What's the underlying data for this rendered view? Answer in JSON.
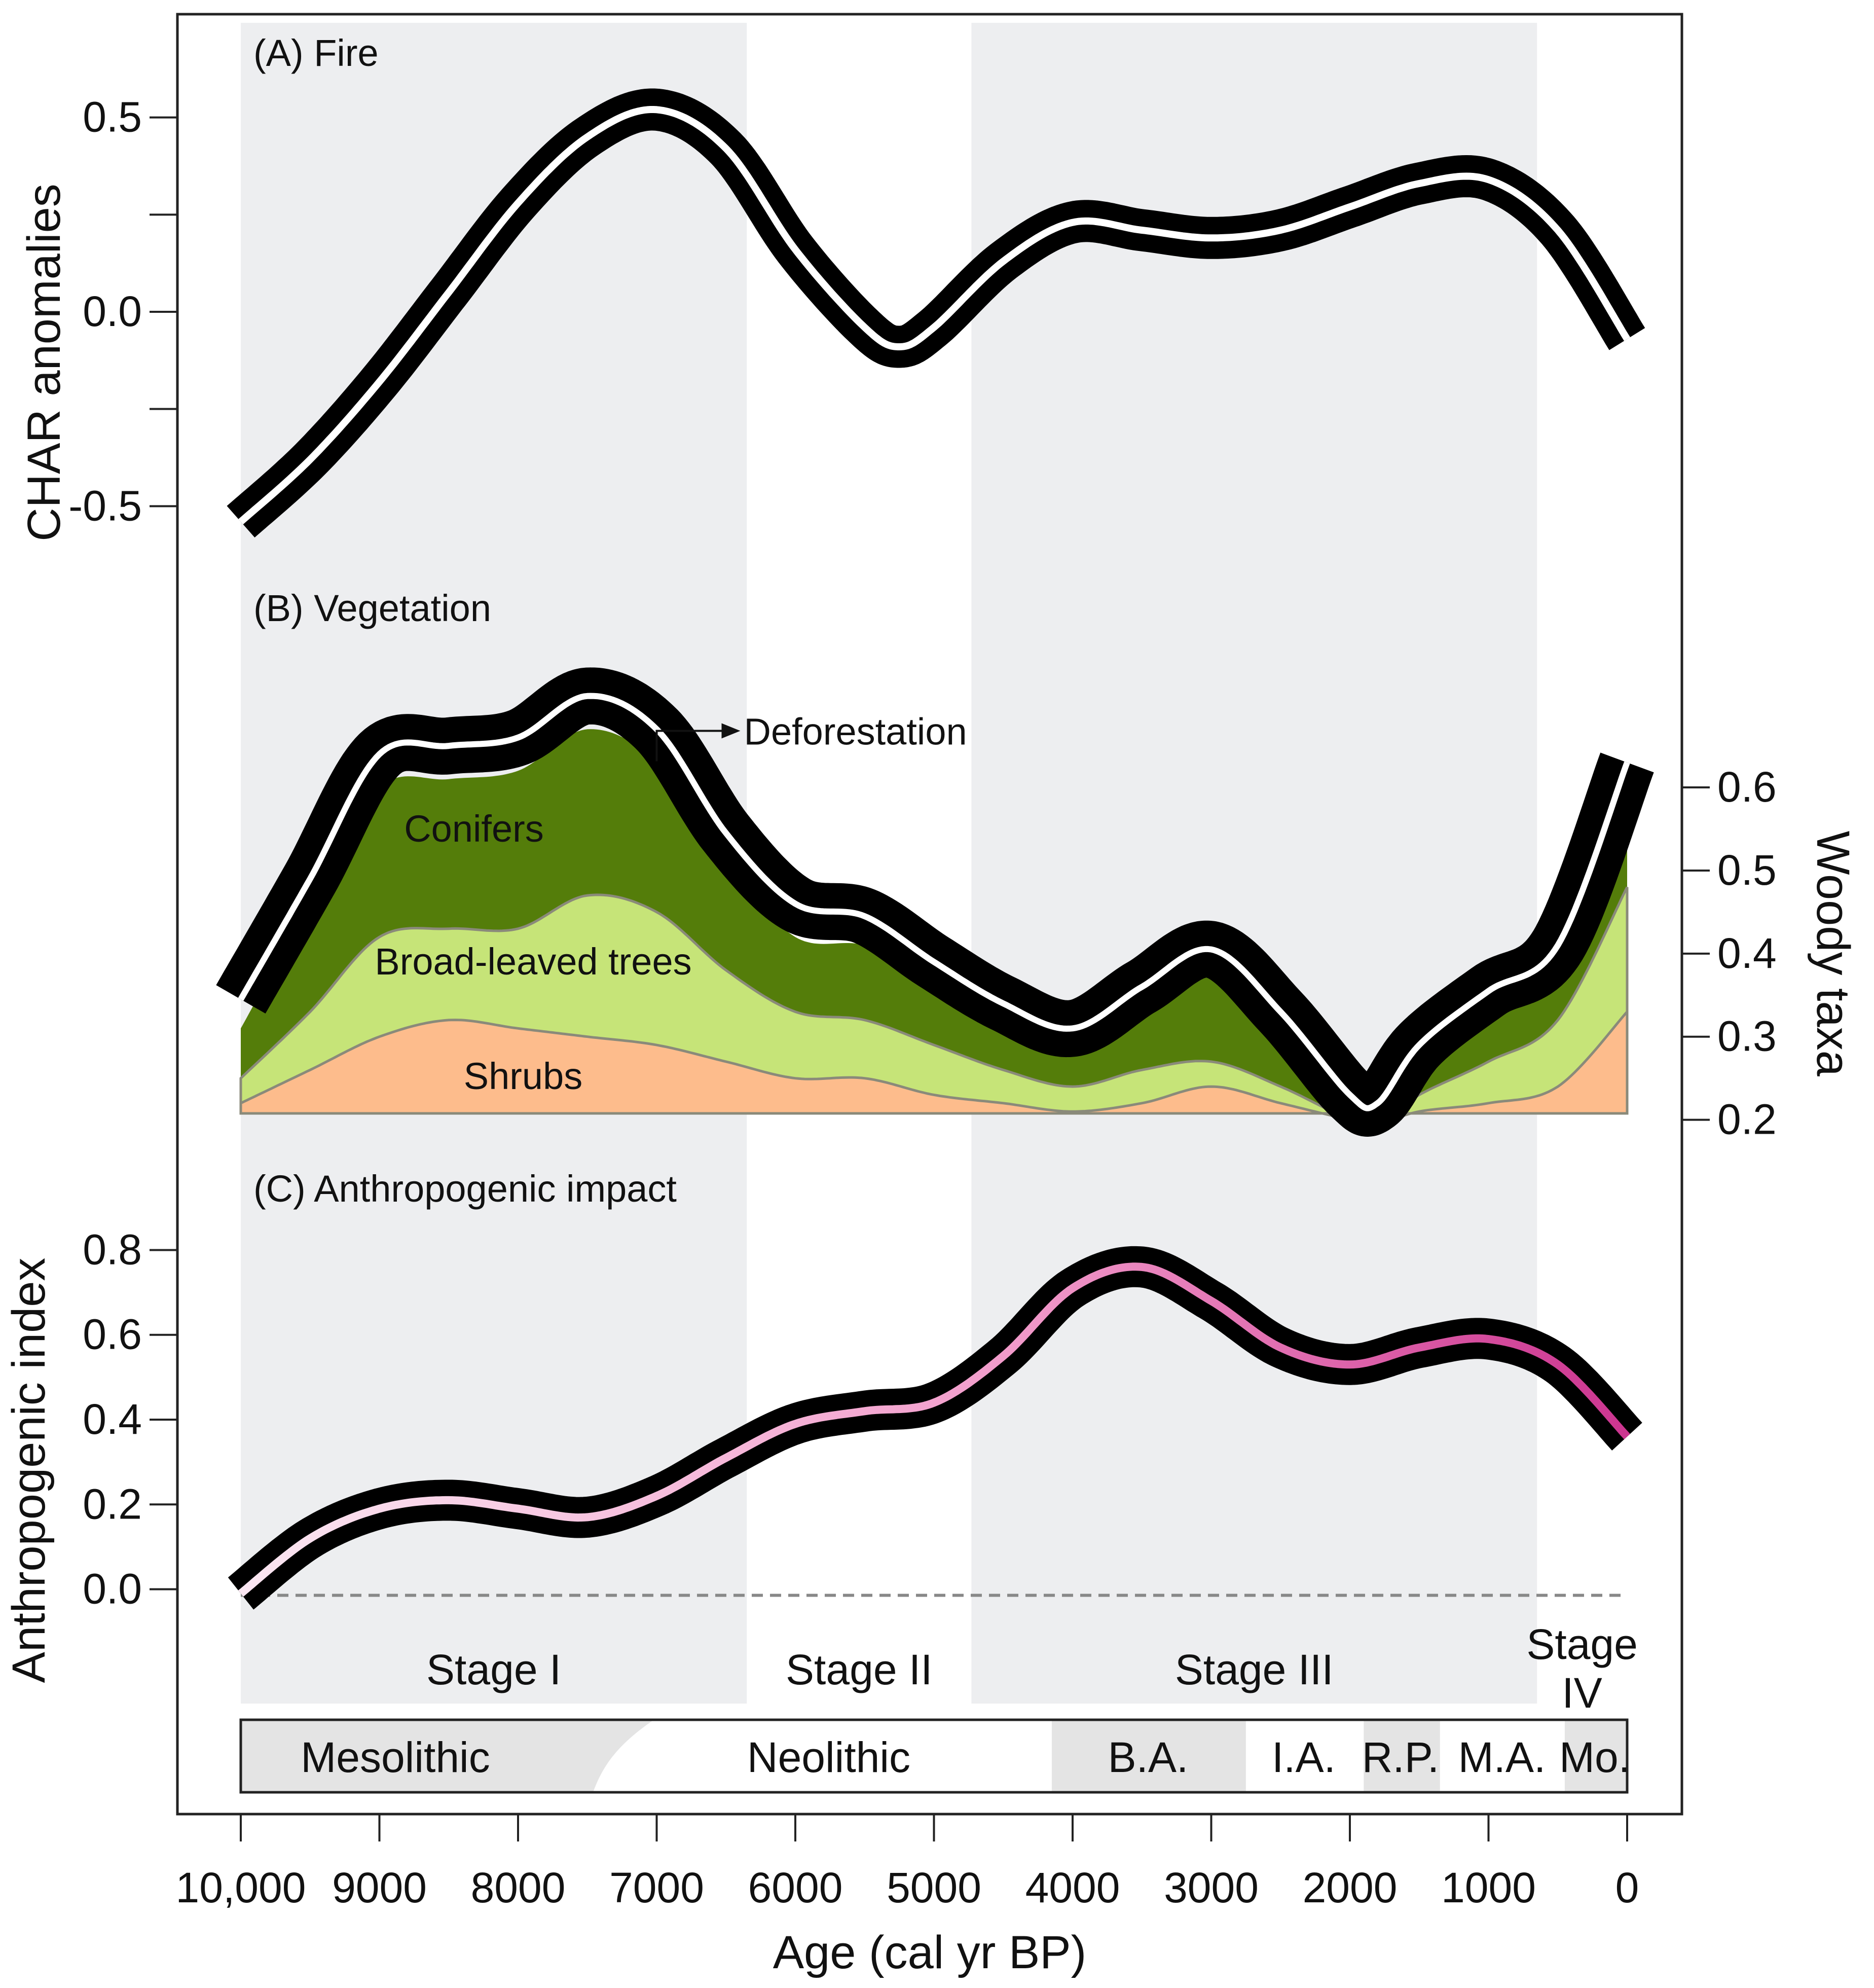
{
  "colors": {
    "stage_band": "#edeef0",
    "conifers": "#547d0a",
    "broadleaved": "#c6e478",
    "shrubs": "#fdbc8c",
    "envelope": "#000000",
    "fire_core": "#ffffff",
    "anthro_light": "#fbe7f2",
    "anthro_mid": "#f29ccb",
    "anthro_dark": "#cc3590",
    "period_fill": "#e4e4e4",
    "zero_line": "#888888"
  },
  "chart_data": {
    "type": "line",
    "xlabel": "Age (cal yr BP)",
    "xlim": [
      10000,
      0
    ],
    "x_ticks": [
      {
        "value": 10000,
        "label": "10,000"
      },
      {
        "value": 9000,
        "label": "9000"
      },
      {
        "value": 8000,
        "label": "8000"
      },
      {
        "value": 7000,
        "label": "7000"
      },
      {
        "value": 6000,
        "label": "6000"
      },
      {
        "value": 5000,
        "label": "5000"
      },
      {
        "value": 4000,
        "label": "4000"
      },
      {
        "value": 3000,
        "label": "3000"
      },
      {
        "value": 2000,
        "label": "2000"
      },
      {
        "value": 1000,
        "label": "1000"
      },
      {
        "value": 0,
        "label": "0"
      }
    ],
    "stages": [
      {
        "label": "Stage I",
        "from": 10000,
        "to": 6350,
        "shaded": true
      },
      {
        "label": "Stage II",
        "from": 6350,
        "to": 4730,
        "shaded": false
      },
      {
        "label": "Stage III",
        "from": 4730,
        "to": 650,
        "shaded": true
      },
      {
        "label": "Stage",
        "label2": "IV",
        "from": 650,
        "to": 0,
        "shaded": false
      }
    ],
    "periods": [
      {
        "label": "Mesolithic",
        "from": 10000,
        "to": 7200,
        "shaded": true
      },
      {
        "label": "Neolithic",
        "from": 7200,
        "to": 4150,
        "shaded": false
      },
      {
        "label": "B.A.",
        "from": 4150,
        "to": 2750,
        "shaded": true
      },
      {
        "label": "I.A.",
        "from": 2750,
        "to": 1900,
        "shaded": false
      },
      {
        "label": "R.P.",
        "from": 1900,
        "to": 1350,
        "shaded": true
      },
      {
        "label": "M.A.",
        "from": 1350,
        "to": 450,
        "shaded": false
      },
      {
        "label": "Mo.",
        "from": 450,
        "to": 0,
        "shaded": true
      }
    ],
    "panels": [
      {
        "id": "fire",
        "title": "(A) Fire",
        "ylabel": "CHAR anomalies",
        "yaxis_side": "left",
        "ylim": [
          -0.6,
          0.6
        ],
        "y_ticks": [
          -0.5,
          -0.25,
          0,
          0.25,
          0.5
        ],
        "y_tick_labels": [
          "-0.5",
          "",
          "0.0",
          "",
          "0.5"
        ],
        "series": [
          {
            "name": "CHAR anomalies",
            "x": [
              10000,
              9500,
              9000,
              8500,
              8000,
              7500,
              7000,
              6500,
              6000,
              5500,
              5250,
              5000,
              4500,
              4000,
              3500,
              3000,
              2500,
              2000,
              1500,
              1000,
              500,
              0
            ],
            "y": [
              -0.54,
              -0.38,
              -0.18,
              0.05,
              0.28,
              0.45,
              0.52,
              0.42,
              0.16,
              -0.04,
              -0.09,
              -0.04,
              0.13,
              0.23,
              0.21,
              0.19,
              0.21,
              0.27,
              0.33,
              0.34,
              0.21,
              -0.07
            ],
            "band": 0.045
          }
        ]
      },
      {
        "id": "vegetation",
        "title": "(B) Vegetation",
        "ylabel": "Woody taxa",
        "yaxis_side": "right",
        "ylim": [
          0.19,
          0.73
        ],
        "y_ticks": [
          0.2,
          0.3,
          0.4,
          0.5,
          0.6
        ],
        "y_tick_labels": [
          "0.2",
          "0.3",
          "0.4",
          "0.5",
          "0.6"
        ],
        "x": [
          10000,
          9500,
          9000,
          8500,
          8000,
          7500,
          7000,
          6500,
          6000,
          5500,
          5000,
          4500,
          4000,
          3500,
          3000,
          2500,
          2000,
          1800,
          1500,
          1000,
          500,
          0
        ],
        "layers": [
          {
            "name": "Shrubs",
            "top": [
              0.22,
              0.26,
              0.3,
              0.32,
              0.31,
              0.3,
              0.29,
              0.27,
              0.25,
              0.25,
              0.23,
              0.22,
              0.21,
              0.22,
              0.24,
              0.22,
              0.2,
              0.195,
              0.21,
              0.22,
              0.24,
              0.33
            ]
          },
          {
            "name": "Broad-leaved trees",
            "top": [
              0.25,
              0.33,
              0.42,
              0.43,
              0.43,
              0.47,
              0.45,
              0.38,
              0.33,
              0.32,
              0.29,
              0.26,
              0.24,
              0.26,
              0.27,
              0.24,
              0.2,
              0.195,
              0.23,
              0.27,
              0.32,
              0.48
            ]
          },
          {
            "name": "Conifers",
            "top": [
              0.31,
              0.46,
              0.6,
              0.61,
              0.62,
              0.67,
              0.63,
              0.51,
              0.42,
              0.41,
              0.37,
              0.32,
              0.29,
              0.35,
              0.38,
              0.31,
              0.21,
              0.2,
              0.27,
              0.33,
              0.38,
              0.57
            ]
          }
        ],
        "envelope": {
          "name": "Woody taxa",
          "y": [
            0.345,
            0.49,
            0.64,
            0.65,
            0.66,
            0.71,
            0.67,
            0.545,
            0.46,
            0.445,
            0.39,
            0.34,
            0.31,
            0.36,
            0.405,
            0.33,
            0.23,
            0.22,
            0.29,
            0.355,
            0.41,
            0.63
          ],
          "band": 0.03
        },
        "annotation": {
          "text": "Deforestation",
          "x": 7000,
          "y": 0.665
        }
      },
      {
        "id": "anthropogenic",
        "title": "(C) Anthropogenic impact",
        "ylabel": "Anthropogenic index",
        "yaxis_side": "left",
        "ylim": [
          -0.15,
          0.95
        ],
        "y_ticks": [
          0,
          0.2,
          0.4,
          0.6,
          0.8
        ],
        "y_tick_labels": [
          "0.0",
          "0.2",
          "0.4",
          "0.6",
          "0.8"
        ],
        "series": [
          {
            "name": "Anthropogenic index",
            "x": [
              10000,
              9500,
              9000,
              8500,
              8000,
              7500,
              7000,
              6500,
              6000,
              5500,
              5000,
              4500,
              4000,
              3500,
              3000,
              2500,
              2000,
              1500,
              1000,
              500,
              0
            ],
            "y": [
              -0.01,
              0.12,
              0.19,
              0.21,
              0.19,
              0.17,
              0.22,
              0.31,
              0.39,
              0.42,
              0.44,
              0.55,
              0.71,
              0.76,
              0.68,
              0.57,
              0.53,
              0.57,
              0.59,
              0.53,
              0.36
            ],
            "band": 0.04,
            "baseline": 0
          }
        ]
      }
    ]
  }
}
